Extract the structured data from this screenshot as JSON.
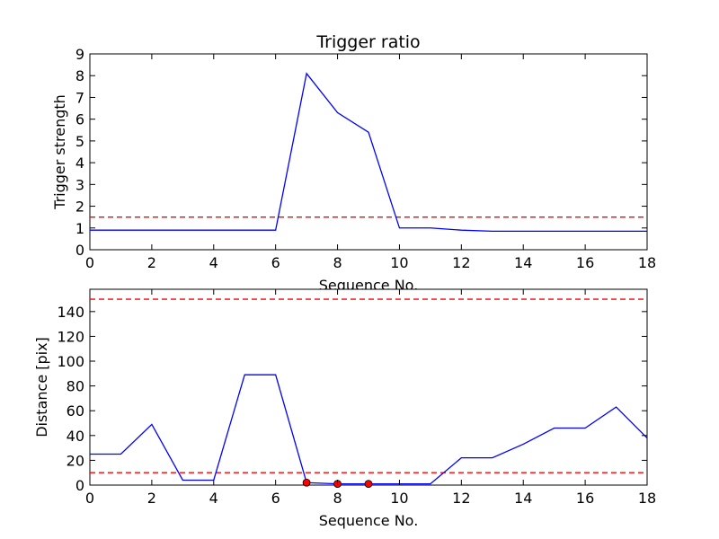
{
  "chart_data": [
    {
      "type": "line",
      "title": "Trigger ratio",
      "xlabel": "Sequence No.",
      "ylabel": "Trigger strength",
      "xlim": [
        0,
        18
      ],
      "ylim": [
        0,
        9
      ],
      "xticks": [
        "0",
        "2",
        "4",
        "6",
        "8",
        "10",
        "12",
        "14",
        "16",
        "18"
      ],
      "yticks": [
        "0",
        "1",
        "2",
        "3",
        "4",
        "5",
        "6",
        "7",
        "8",
        "9"
      ],
      "grid": false,
      "series": [
        {
          "color": "#0000ff",
          "style": "solid",
          "x": [
            0,
            1,
            2,
            3,
            4,
            5,
            6,
            7,
            8,
            9,
            10,
            11,
            12,
            13,
            14,
            15,
            16,
            17,
            18
          ],
          "y": [
            0.9,
            0.9,
            0.9,
            0.9,
            0.9,
            0.9,
            0.9,
            8.1,
            6.3,
            5.4,
            1.0,
            1.0,
            0.9,
            0.85,
            0.85,
            0.85,
            0.85,
            0.85,
            0.85
          ]
        }
      ],
      "hlines": [
        {
          "y": 1.5,
          "color": "#ff0000",
          "style": "dashed"
        }
      ],
      "markers": []
    },
    {
      "type": "line",
      "title": "",
      "xlabel": "Sequence No.",
      "ylabel": "Distance [pix]",
      "xlim": [
        0,
        18
      ],
      "ylim": [
        0,
        158
      ],
      "xticks": [
        "0",
        "2",
        "4",
        "6",
        "8",
        "10",
        "12",
        "14",
        "16",
        "18"
      ],
      "yticks": [
        "0",
        "20",
        "40",
        "60",
        "80",
        "100",
        "120",
        "140"
      ],
      "grid": false,
      "series": [
        {
          "color": "#0000ff",
          "style": "solid",
          "x": [
            0,
            1,
            2,
            3,
            4,
            5,
            6,
            7,
            8,
            9,
            10,
            11,
            12,
            13,
            14,
            15,
            16,
            17,
            18
          ],
          "y": [
            25,
            25,
            49,
            4,
            4,
            89,
            89,
            2,
            1,
            1,
            1,
            1,
            22,
            22,
            33,
            46,
            46,
            63,
            38
          ]
        }
      ],
      "hlines": [
        {
          "y": 150,
          "color": "#ff0000",
          "style": "dashed"
        },
        {
          "y": 10,
          "color": "#ff0000",
          "style": "dashed"
        }
      ],
      "markers": [
        {
          "x": 7,
          "y": 2,
          "color": "#ff0000"
        },
        {
          "x": 8,
          "y": 1,
          "color": "#ff0000"
        },
        {
          "x": 9,
          "y": 1,
          "color": "#ff0000"
        }
      ]
    }
  ]
}
